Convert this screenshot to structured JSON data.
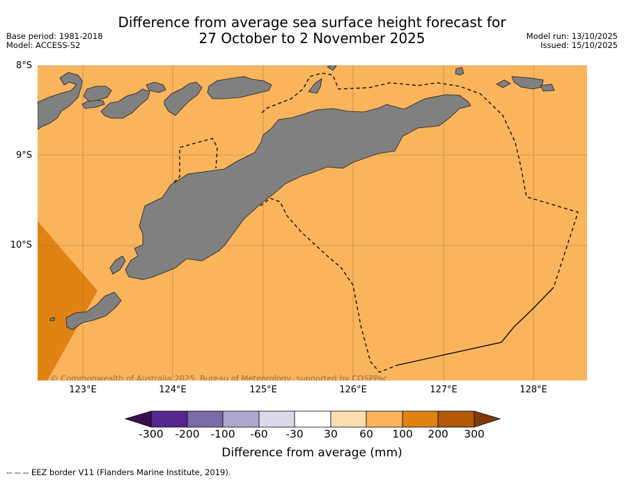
{
  "title_line1": "Difference from average sea surface height forecast for",
  "title_line2": "27 October to 2 November 2025",
  "base_period": "Base period: 1981-2018",
  "model": "Model: ACCESS-S2",
  "model_run": "Model run: 13/10/2025",
  "issued": "Issued: 15/10/2025",
  "lat_labels": [
    "8°S",
    "9°S",
    "10°S"
  ],
  "lon_labels": [
    "123°E",
    "124°E",
    "125°E",
    "126°E",
    "127°E",
    "128°E"
  ],
  "copyright": "© Commonwealth of Australia 2025, Bureau of Meteorology, supported by COSPPac",
  "colorbar": {
    "title": "Difference from average (mm)",
    "tick_labels": [
      "-300",
      "-200",
      "-100",
      "-60",
      "-30",
      "30",
      "60",
      "100",
      "200",
      "300"
    ],
    "colors": [
      "#3b0f4f",
      "#54278f",
      "#7b6ba9",
      "#ada7d0",
      "#dadaeb",
      "#ffffff",
      "#fddeb0",
      "#f9b45c",
      "#e08214",
      "#b35806",
      "#7f3b08"
    ]
  },
  "legend_note": "--  --  -- EEZ border V11 (Flanders Marine Institute, 2019).",
  "colors": {
    "ocean": "#f9b45c",
    "ocean_high": "#e08214",
    "land": "#808080"
  }
}
